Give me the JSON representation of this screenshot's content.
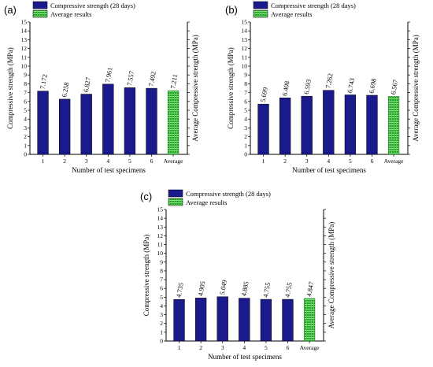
{
  "figure": {
    "legend": {
      "strength_label": "Compressive strength (28 days)",
      "average_label": "Average results"
    },
    "ylabel": "Compressive strength (MPa)",
    "ylabel_right": "Average Compressive strength (MPa)",
    "xlabel": "Number of test specimens",
    "colors": {
      "bar": "#1a1a8c",
      "average_bar": "#1fa31f"
    }
  },
  "chart_data": [
    {
      "panel": "(a)",
      "type": "bar",
      "categories": [
        "1",
        "2",
        "3",
        "4",
        "5",
        "6",
        "Average"
      ],
      "values": [
        7.172,
        6.258,
        6.827,
        7.961,
        7.557,
        7.492,
        7.211
      ],
      "value_labels": [
        "7.172",
        "6.258",
        "6.827",
        "7.961",
        "7.557",
        "7.492",
        "7.211"
      ],
      "xlabel": "Number of test specimens",
      "ylabel": "Compressive strength (MPa)",
      "ylabel_right": "Average Compressive strength (MPa)",
      "ylim": [
        0,
        15
      ],
      "yticks": [
        "0",
        "1",
        "2",
        "3",
        "4",
        "5",
        "6",
        "7",
        "8",
        "9",
        "10",
        "11",
        "12",
        "13",
        "14",
        "15"
      ],
      "legend": [
        "Compressive strength (28 days)",
        "Average results"
      ]
    },
    {
      "panel": "(b)",
      "type": "bar",
      "categories": [
        "1",
        "2",
        "3",
        "4",
        "5",
        "6",
        "Average"
      ],
      "values": [
        5.699,
        6.408,
        6.593,
        7.262,
        6.743,
        6.698,
        6.567
      ],
      "value_labels": [
        "5.699",
        "6.408",
        "6.593",
        "7.262",
        "6.743",
        "6.698",
        "6.567"
      ],
      "xlabel": "Number of test specimens",
      "ylabel": "Compressive strength (MPa)",
      "ylabel_right": "Average Compressive strength (MPa)",
      "ylim": [
        0,
        15
      ],
      "yticks": [
        "0",
        "1",
        "2",
        "3",
        "4",
        "5",
        "6",
        "7",
        "8",
        "9",
        "10",
        "11",
        "12",
        "13",
        "14",
        "15"
      ],
      "legend": [
        "Compressive strength (28 days)",
        "Average results"
      ]
    },
    {
      "panel": "(c)",
      "type": "bar",
      "categories": [
        "1",
        "2",
        "3",
        "4",
        "5",
        "6",
        "Average"
      ],
      "values": [
        4.735,
        4.905,
        5.049,
        4.885,
        4.755,
        4.755,
        4.847
      ],
      "value_labels": [
        "4.735",
        "4.905",
        "5.049",
        "4.885",
        "4.755",
        "4.755",
        "4.847"
      ],
      "xlabel": "Number of test specimens",
      "ylabel": "Compressive strength (MPa)",
      "ylabel_right": "Average Compressive strength (MPa)",
      "ylim": [
        0,
        15
      ],
      "yticks": [
        "0",
        "1",
        "2",
        "3",
        "4",
        "5",
        "6",
        "7",
        "8",
        "9",
        "10",
        "11",
        "12",
        "13",
        "14",
        "15"
      ],
      "legend": [
        "Compressive strength (28 days)",
        "Average results"
      ]
    }
  ]
}
